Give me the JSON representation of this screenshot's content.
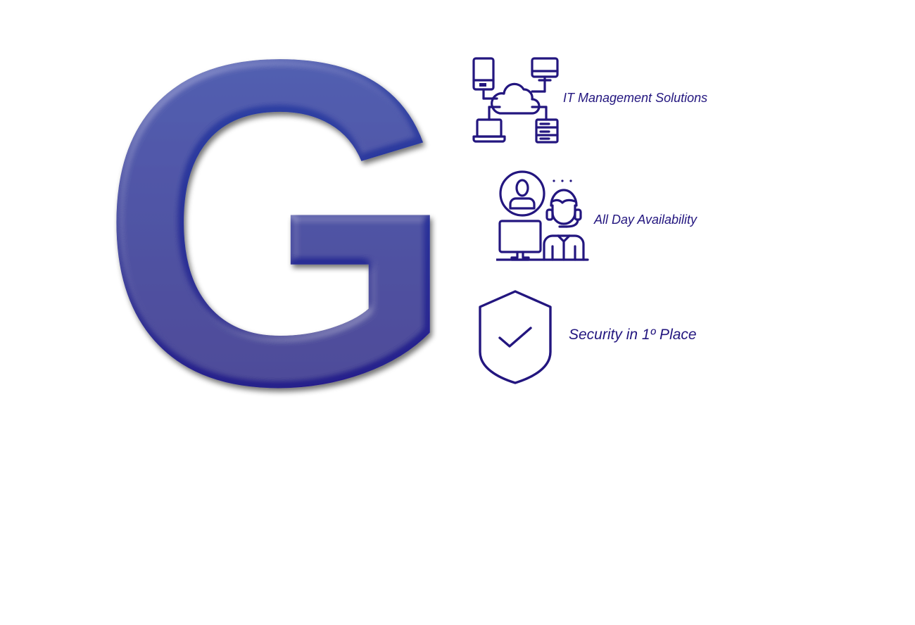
{
  "logo": {
    "letter": "G",
    "gradient_top": "#2f4fae",
    "gradient_bottom": "#231383"
  },
  "icon_color": "#23167f",
  "features": [
    {
      "label": "IT Management Solutions",
      "icon": "cloud-network-icon"
    },
    {
      "label": "All Day Availability",
      "icon": "support-agent-icon"
    },
    {
      "label": "Security in 1º Place",
      "icon": "shield-check-icon"
    }
  ]
}
